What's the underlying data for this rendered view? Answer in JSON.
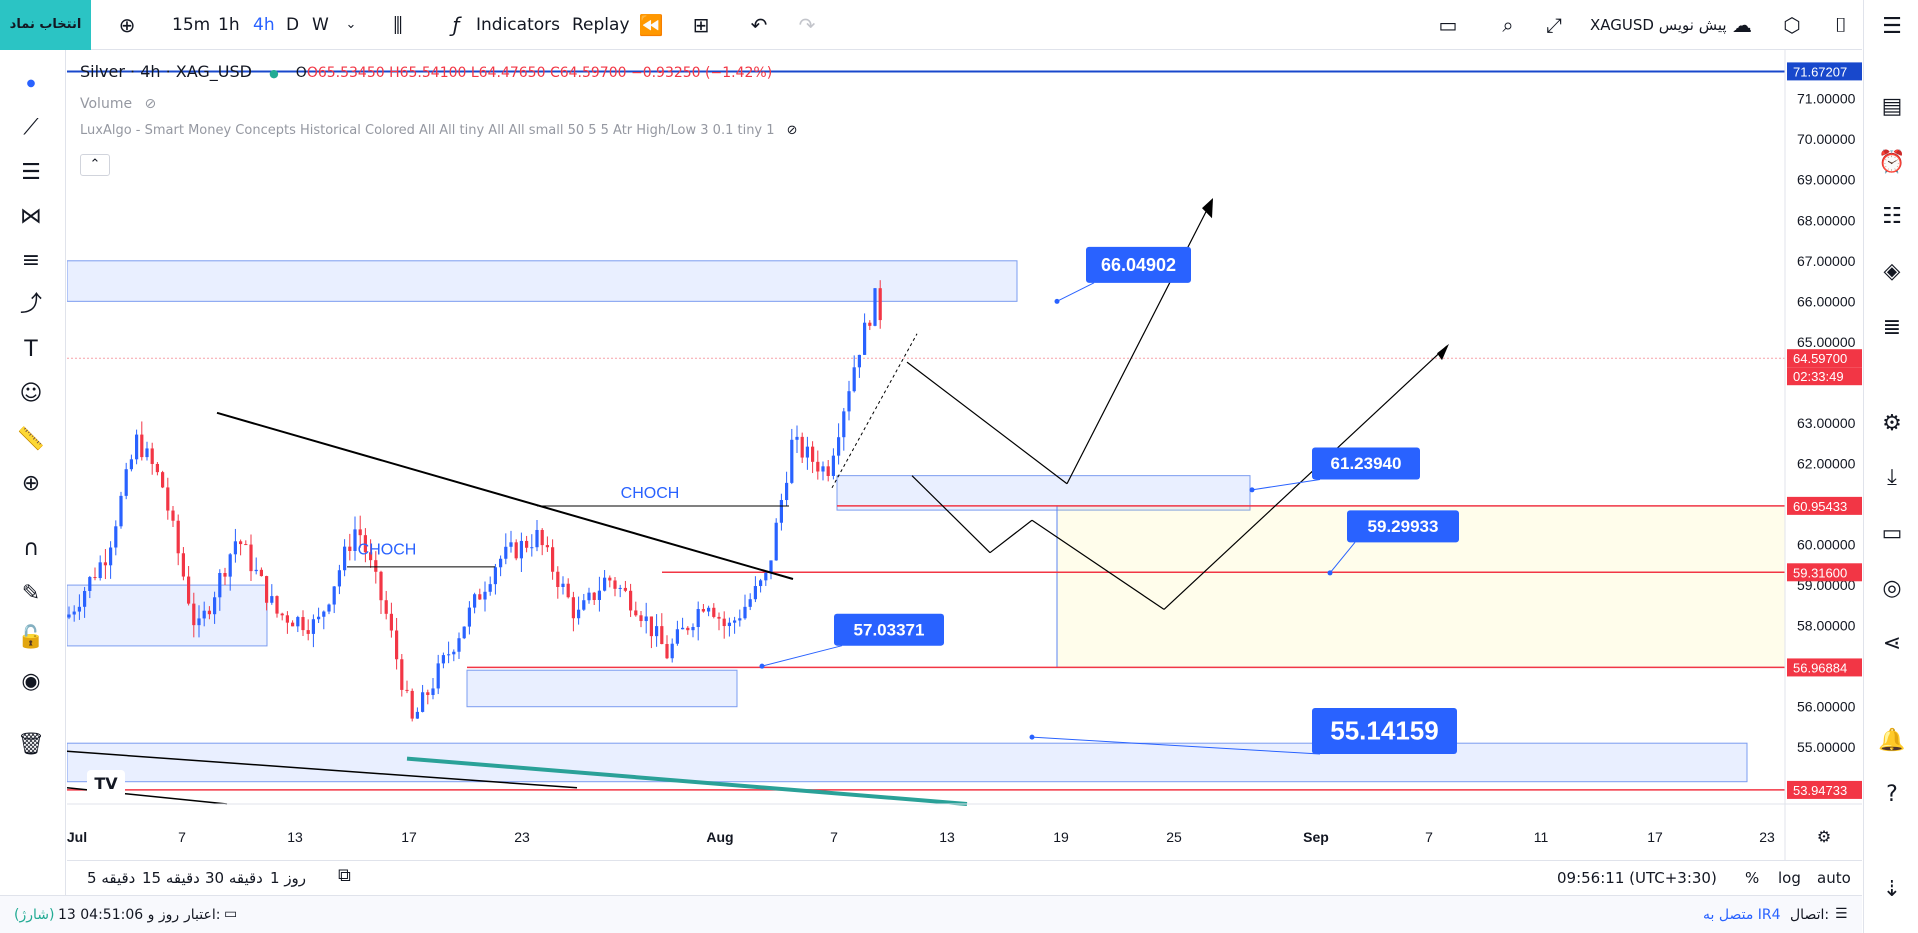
{
  "symbol_button": "انتخاب نماد",
  "toolbar": {
    "intervals": [
      "15m",
      "1h",
      "4h",
      "D",
      "W"
    ],
    "active_interval": "4h",
    "indicators_label": "Indicators",
    "replay_label": "Replay",
    "draft_label": "XAGUSD پیش نویس"
  },
  "legend": {
    "title": "Silver · 4h · XAG_USD",
    "open": "O65.53450",
    "high": "H65.54100",
    "low": "L64.47650",
    "close": "C64.59700",
    "change": "−0.93250 (−1.42%)",
    "volume": "Volume",
    "indicator": "LuxAlgo - Smart Money Concepts Historical Colored All All tiny All All small 50 5 5 Atr High/Low 3 0.1 tiny 1"
  },
  "chart_data": {
    "type": "candlestick",
    "symbol": "XAG_USD",
    "interval": "4h",
    "y_ticks": [
      "71.00000",
      "70.00000",
      "69.00000",
      "68.00000",
      "67.00000",
      "66.00000",
      "65.00000",
      "63.00000",
      "62.00000",
      "60.00000",
      "59.00000",
      "58.00000",
      "56.00000",
      "55.00000"
    ],
    "x_ticks": [
      "Jul",
      "7",
      "13",
      "17",
      "23",
      "Aug",
      "7",
      "13",
      "19",
      "25",
      "Sep",
      "7",
      "11",
      "17",
      "23"
    ],
    "price_tags": [
      {
        "label": "71.67207",
        "color": "#1848cc"
      },
      {
        "label": "64.59700",
        "color": "#f23645"
      },
      {
        "label": "02:33:49",
        "color": "#f23645"
      },
      {
        "label": "60.95433",
        "color": "#f23645"
      },
      {
        "label": "59.31600",
        "color": "#f23645"
      },
      {
        "label": "56.96884",
        "color": "#f23645"
      },
      {
        "label": "53.94733",
        "color": "#f23645"
      }
    ],
    "callouts": [
      "66.04902",
      "61.23940",
      "59.29933",
      "57.03371",
      "55.14159"
    ],
    "annotations": [
      "CHOCH",
      "CHOCH"
    ],
    "last_price": 64.597,
    "ylim": [
      53.6,
      72.2
    ]
  },
  "bottombar": {
    "ranges": [
      "5 دقیقه",
      "15 دقیقه",
      "30 دقیقه",
      "1 روز"
    ],
    "clock": "09:56:11 (UTC+3:30)",
    "percent": "%",
    "log": "log",
    "auto": "auto"
  },
  "statusbar": {
    "credit_label": "اعتبار:",
    "credit_value": "13 روز و 04:51:06",
    "credit_state": "(شارژ)",
    "connection_label": "اتصال:",
    "connection_value": "متصل به IR4"
  }
}
